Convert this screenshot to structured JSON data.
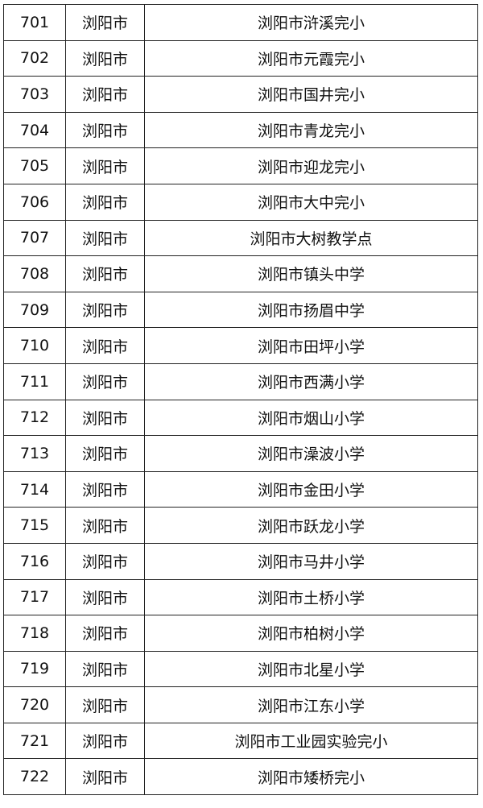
{
  "table": {
    "rows": [
      {
        "no": "701",
        "city": "浏阳市",
        "school": "浏阳市浒溪完小"
      },
      {
        "no": "702",
        "city": "浏阳市",
        "school": "浏阳市元霞完小"
      },
      {
        "no": "703",
        "city": "浏阳市",
        "school": "浏阳市国井完小"
      },
      {
        "no": "704",
        "city": "浏阳市",
        "school": "浏阳市青龙完小"
      },
      {
        "no": "705",
        "city": "浏阳市",
        "school": "浏阳市迎龙完小"
      },
      {
        "no": "706",
        "city": "浏阳市",
        "school": "浏阳市大中完小"
      },
      {
        "no": "707",
        "city": "浏阳市",
        "school": "浏阳市大树教学点"
      },
      {
        "no": "708",
        "city": "浏阳市",
        "school": "浏阳市镇头中学"
      },
      {
        "no": "709",
        "city": "浏阳市",
        "school": "浏阳市扬眉中学"
      },
      {
        "no": "710",
        "city": "浏阳市",
        "school": "浏阳市田坪小学"
      },
      {
        "no": "711",
        "city": "浏阳市",
        "school": "浏阳市西满小学"
      },
      {
        "no": "712",
        "city": "浏阳市",
        "school": "浏阳市烟山小学"
      },
      {
        "no": "713",
        "city": "浏阳市",
        "school": "浏阳市澡波小学"
      },
      {
        "no": "714",
        "city": "浏阳市",
        "school": "浏阳市金田小学"
      },
      {
        "no": "715",
        "city": "浏阳市",
        "school": "浏阳市跃龙小学"
      },
      {
        "no": "716",
        "city": "浏阳市",
        "school": "浏阳市马井小学"
      },
      {
        "no": "717",
        "city": "浏阳市",
        "school": "浏阳市土桥小学"
      },
      {
        "no": "718",
        "city": "浏阳市",
        "school": "浏阳市柏树小学"
      },
      {
        "no": "719",
        "city": "浏阳市",
        "school": "浏阳市北星小学"
      },
      {
        "no": "720",
        "city": "浏阳市",
        "school": "浏阳市江东小学"
      },
      {
        "no": "721",
        "city": "浏阳市",
        "school": "浏阳市工业园实验完小"
      },
      {
        "no": "722",
        "city": "浏阳市",
        "school": "浏阳市矮桥完小"
      }
    ]
  }
}
